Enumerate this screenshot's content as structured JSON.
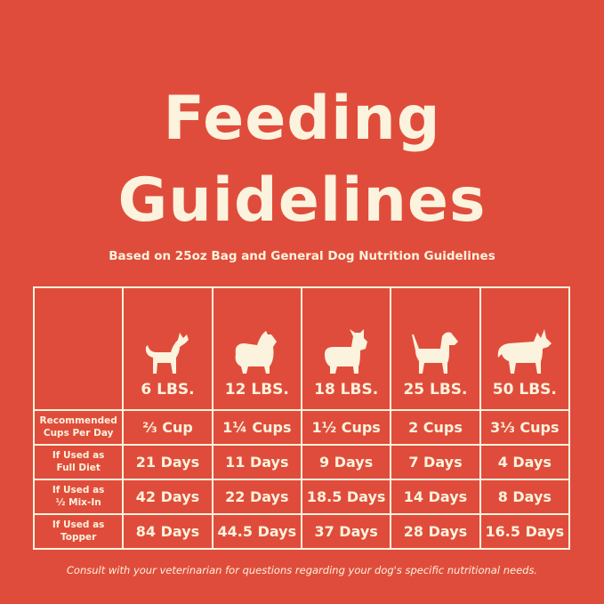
{
  "title_line1": "Feeding",
  "title_line2": "Guidelines",
  "subtitle": "Based on 25oz Bag and General Dog Nutrition Guidelines",
  "colors": {
    "background": "#e04c3b",
    "text": "#fbf3dd"
  },
  "columns": [
    {
      "weight": "6 LBS.",
      "icon": "chihuahua-silhouette-icon"
    },
    {
      "weight": "12 LBS.",
      "icon": "pomeranian-silhouette-icon"
    },
    {
      "weight": "18 LBS.",
      "icon": "french-bulldog-silhouette-icon"
    },
    {
      "weight": "25 LBS.",
      "icon": "beagle-silhouette-icon"
    },
    {
      "weight": "50 LBS.",
      "icon": "husky-silhouette-icon"
    }
  ],
  "rows": [
    {
      "label": [
        "Recommended",
        "Cups Per Day"
      ],
      "values": [
        "⅔ Cup",
        "1¼ Cups",
        "1½ Cups",
        "2 Cups",
        "3⅓ Cups"
      ]
    },
    {
      "label": [
        "If Used as",
        "Full Diet"
      ],
      "values": [
        "21 Days",
        "11 Days",
        "9 Days",
        "7 Days",
        "4 Days"
      ]
    },
    {
      "label": [
        "If Used as",
        "½ Mix-In"
      ],
      "values": [
        "42 Days",
        "22 Days",
        "18.5 Days",
        "14 Days",
        "8 Days"
      ]
    },
    {
      "label": [
        "If Used as",
        "Topper"
      ],
      "values": [
        "84 Days",
        "44.5 Days",
        "37 Days",
        "28 Days",
        "16.5 Days"
      ]
    }
  ],
  "footer": "Consult with your veterinarian for questions regarding your dog's specific nutritional needs."
}
